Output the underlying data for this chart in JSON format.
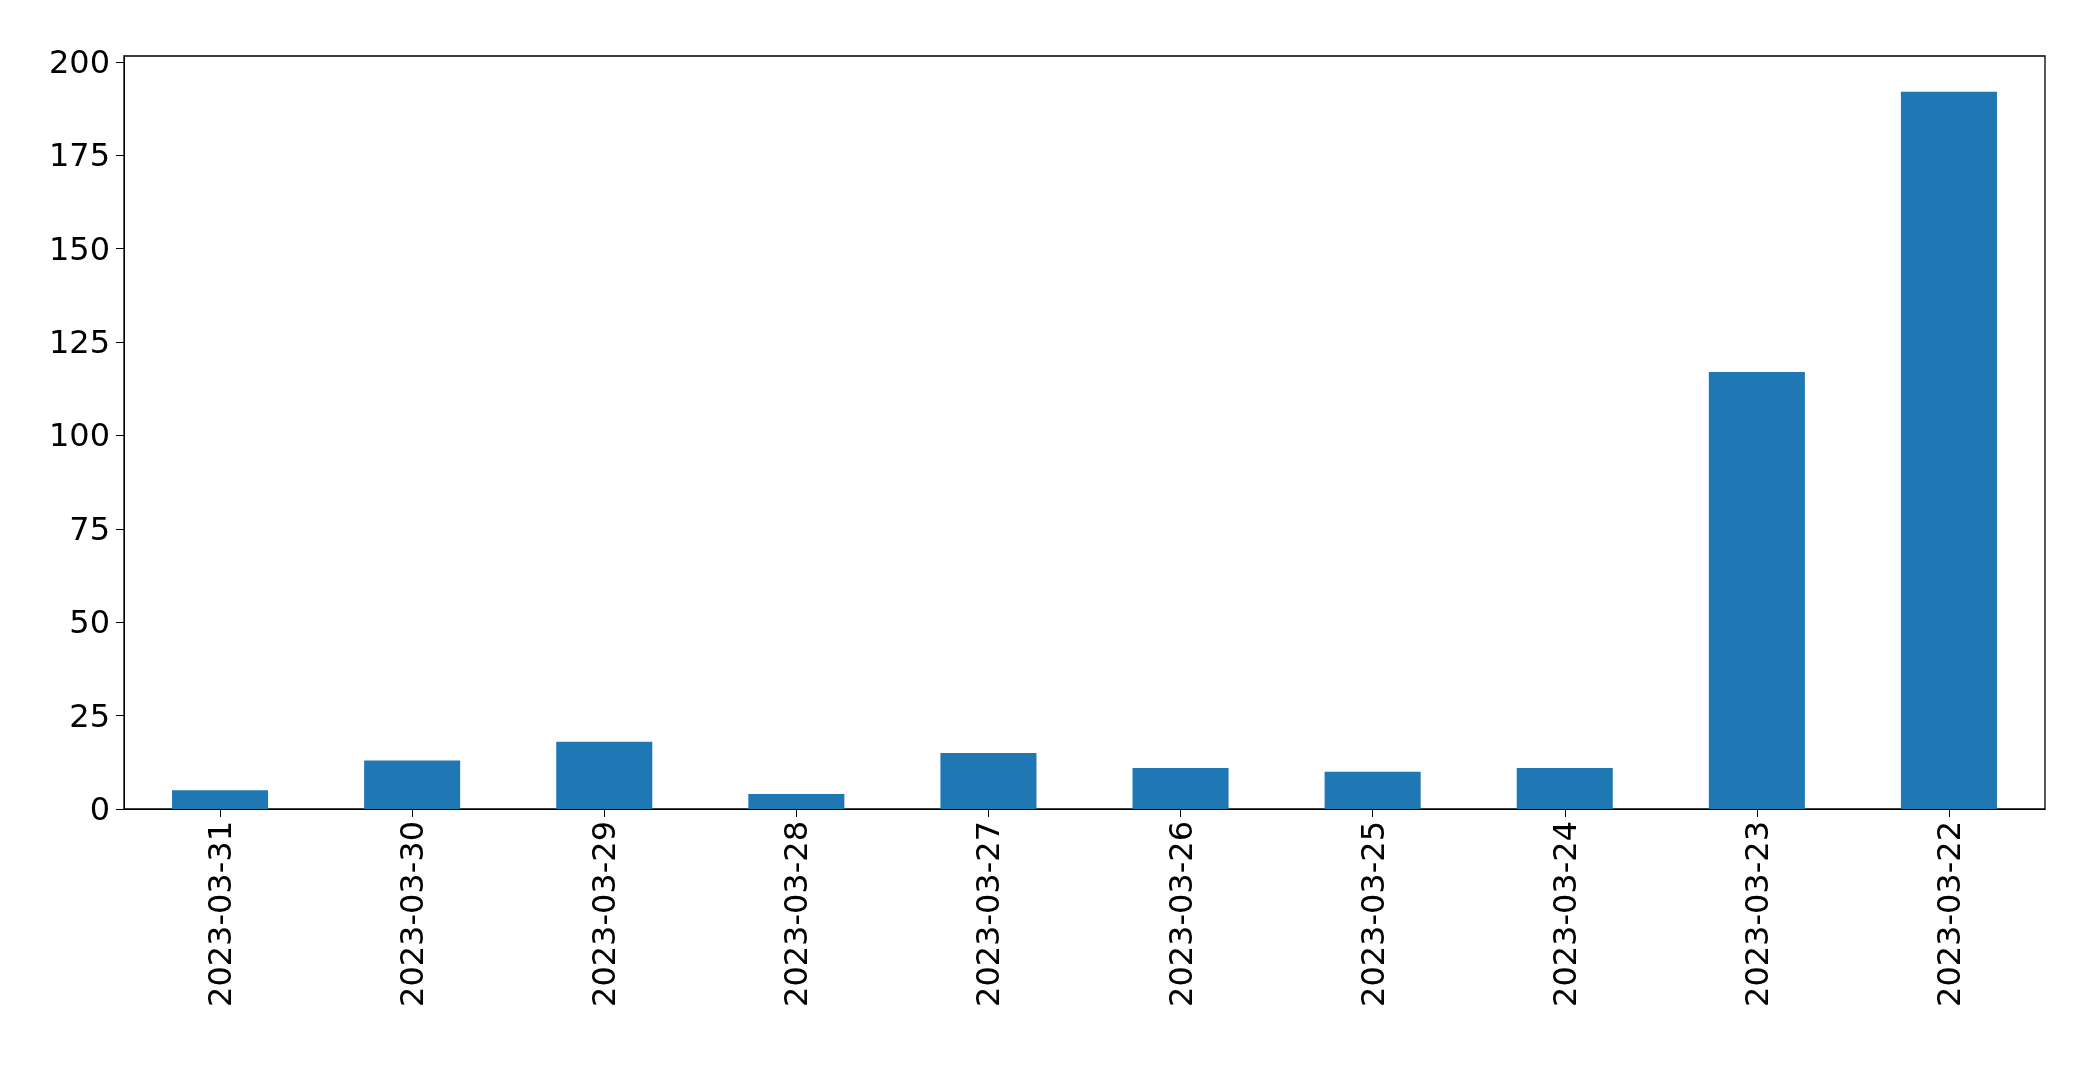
{
  "chart_data": {
    "type": "bar",
    "categories": [
      "2023-03-31",
      "2023-03-30",
      "2023-03-29",
      "2023-03-28",
      "2023-03-27",
      "2023-03-26",
      "2023-03-25",
      "2023-03-24",
      "2023-03-23",
      "2023-03-22"
    ],
    "values": [
      5,
      13,
      18,
      4,
      15,
      11,
      10,
      11,
      117,
      192
    ],
    "color": "#1f77b4",
    "ylim": [
      0,
      201.6
    ],
    "yticks": [
      0,
      25,
      50,
      75,
      100,
      125,
      150,
      175,
      200
    ],
    "grid": false
  }
}
